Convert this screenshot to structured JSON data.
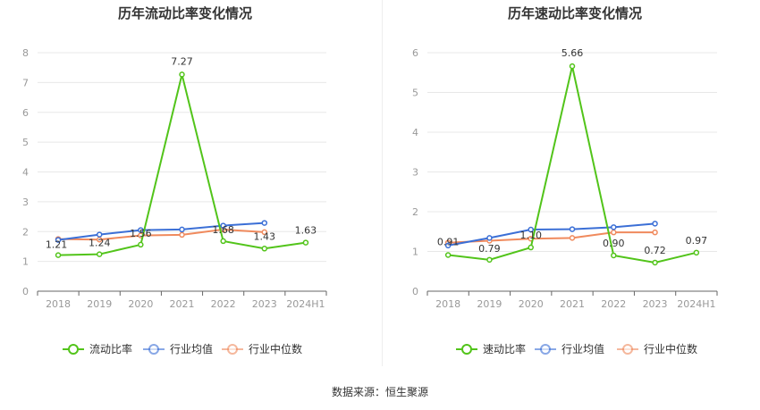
{
  "source_label": "数据来源：恒生聚源",
  "chart_data": [
    {
      "type": "line",
      "title": "历年流动比率变化情况",
      "categories": [
        "2018",
        "2019",
        "2020",
        "2021",
        "2022",
        "2023",
        "2024H1"
      ],
      "ylim": [
        0,
        8
      ],
      "yticks": [
        0,
        1,
        2,
        3,
        4,
        5,
        6,
        7,
        8
      ],
      "grid": true,
      "legend_position": "bottom",
      "series": [
        {
          "name": "流动比率",
          "color": "#52c41a",
          "values": [
            1.21,
            1.24,
            1.56,
            7.27,
            1.68,
            1.43,
            1.63
          ],
          "labels": [
            "1.21",
            "1.24",
            "1.56",
            "7.27",
            "1.68",
            "1.43",
            "1.63"
          ]
        },
        {
          "name": "行业均值",
          "color": "#3b6fd6",
          "values": [
            1.72,
            1.9,
            2.05,
            2.07,
            2.2,
            2.29,
            null
          ]
        },
        {
          "name": "行业中位数",
          "color": "#f08a5d",
          "values": [
            1.75,
            1.73,
            1.87,
            1.89,
            2.07,
            1.98,
            null
          ]
        }
      ]
    },
    {
      "type": "line",
      "title": "历年速动比率变化情况",
      "categories": [
        "2018",
        "2019",
        "2020",
        "2021",
        "2022",
        "2023",
        "2024H1"
      ],
      "ylim": [
        0,
        6
      ],
      "yticks": [
        0,
        1,
        2,
        3,
        4,
        5,
        6
      ],
      "grid": true,
      "legend_position": "bottom",
      "series": [
        {
          "name": "速动比率",
          "color": "#52c41a",
          "values": [
            0.91,
            0.79,
            1.1,
            5.66,
            0.9,
            0.72,
            0.97
          ],
          "labels": [
            "0.91",
            "0.79",
            "1.10",
            "5.66",
            "0.90",
            "0.72",
            "0.97"
          ]
        },
        {
          "name": "行业均值",
          "color": "#3b6fd6",
          "values": [
            1.15,
            1.34,
            1.55,
            1.56,
            1.61,
            1.7,
            null
          ]
        },
        {
          "name": "行业中位数",
          "color": "#f08a5d",
          "values": [
            1.22,
            1.27,
            1.32,
            1.34,
            1.48,
            1.48,
            null
          ]
        }
      ]
    }
  ]
}
